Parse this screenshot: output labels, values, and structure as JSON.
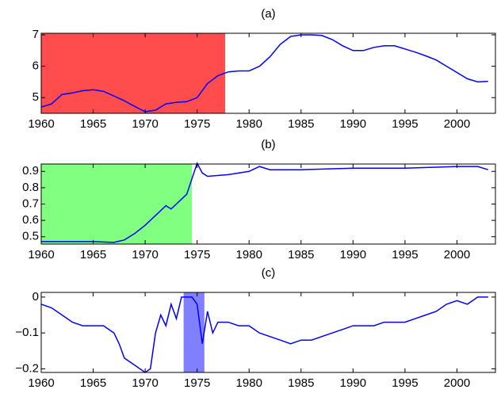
{
  "chart_data": [
    {
      "type": "line",
      "title": "(a)",
      "x": [
        1960,
        1961,
        1962,
        1963,
        1964,
        1965,
        1966,
        1967,
        1968,
        1969,
        1970,
        1971,
        1972,
        1973,
        1974,
        1975,
        1976,
        1977,
        1978,
        1979,
        1980,
        1981,
        1982,
        1983,
        1984,
        1985,
        1986,
        1987,
        1988,
        1989,
        1990,
        1991,
        1992,
        1993,
        1994,
        1995,
        1996,
        1997,
        1998,
        1999,
        2000,
        2001,
        2002,
        2003
      ],
      "series": [
        {
          "color": "#0000ff",
          "values": [
            4.7,
            4.8,
            5.1,
            5.15,
            5.22,
            5.25,
            5.2,
            5.05,
            4.9,
            4.72,
            4.55,
            4.6,
            4.8,
            4.85,
            4.87,
            5.0,
            5.45,
            5.7,
            5.82,
            5.85,
            5.85,
            6.0,
            6.3,
            6.7,
            6.95,
            7.0,
            7.0,
            6.98,
            6.85,
            6.65,
            6.5,
            6.5,
            6.6,
            6.65,
            6.65,
            6.55,
            6.45,
            6.33,
            6.2,
            6.0,
            5.8,
            5.6,
            5.5,
            5.52
          ]
        }
      ],
      "shade": {
        "x": [
          1960,
          1977.7
        ],
        "color": "#ff4c4c"
      },
      "xlim": [
        1960,
        2003.7
      ],
      "xticks": [
        1960,
        1965,
        1970,
        1975,
        1980,
        1985,
        1990,
        1995,
        2000
      ],
      "ylim": [
        4.5,
        7.05
      ],
      "yticks": [
        5,
        6,
        7
      ]
    },
    {
      "type": "line",
      "title": "(b)",
      "x": [
        1960,
        1962,
        1965,
        1967,
        1968,
        1969,
        1970,
        1971,
        1972,
        1972.5,
        1973,
        1974,
        1975,
        1975.5,
        1976,
        1978,
        1980,
        1981,
        1982,
        1985,
        1990,
        1995,
        2000,
        2002,
        2003
      ],
      "series": [
        {
          "color": "#0000ff",
          "values": [
            0.47,
            0.47,
            0.47,
            0.465,
            0.48,
            0.52,
            0.57,
            0.63,
            0.69,
            0.67,
            0.7,
            0.76,
            0.95,
            0.89,
            0.87,
            0.88,
            0.9,
            0.93,
            0.91,
            0.91,
            0.92,
            0.92,
            0.93,
            0.93,
            0.91
          ]
        }
      ],
      "shade": {
        "x": [
          1960,
          1974.5
        ],
        "color": "#80ff80"
      },
      "xlim": [
        1960,
        2003.7
      ],
      "xticks": [
        1960,
        1965,
        1970,
        1975,
        1980,
        1985,
        1990,
        1995,
        2000
      ],
      "ylim": [
        0.455,
        0.945
      ],
      "yticks": [
        0.5,
        0.6,
        0.7,
        0.8,
        0.9
      ]
    },
    {
      "type": "line",
      "title": "(c)",
      "x": [
        1960,
        1961,
        1962,
        1963,
        1964,
        1965,
        1966,
        1967,
        1967.5,
        1968,
        1969,
        1970,
        1970.5,
        1971,
        1971.5,
        1972,
        1972.5,
        1973,
        1973.5,
        1974,
        1974.5,
        1975,
        1975.5,
        1976,
        1976.5,
        1977,
        1978,
        1979,
        1980,
        1981,
        1982,
        1983,
        1984,
        1985,
        1986,
        1987,
        1988,
        1989,
        1990,
        1991,
        1992,
        1993,
        1994,
        1995,
        1996,
        1997,
        1998,
        1999,
        2000,
        2001,
        2002,
        2003
      ],
      "series": [
        {
          "color": "#0000ff",
          "values": [
            -0.02,
            -0.03,
            -0.05,
            -0.07,
            -0.08,
            -0.08,
            -0.08,
            -0.1,
            -0.13,
            -0.17,
            -0.19,
            -0.21,
            -0.2,
            -0.1,
            -0.05,
            -0.08,
            -0.02,
            -0.06,
            0,
            0,
            0,
            -0.02,
            -0.13,
            -0.04,
            -0.1,
            -0.07,
            -0.07,
            -0.08,
            -0.08,
            -0.1,
            -0.11,
            -0.12,
            -0.13,
            -0.12,
            -0.12,
            -0.11,
            -0.1,
            -0.09,
            -0.08,
            -0.08,
            -0.08,
            -0.07,
            -0.07,
            -0.07,
            -0.06,
            -0.05,
            -0.04,
            -0.02,
            -0.01,
            -0.02,
            0,
            0
          ]
        }
      ],
      "shade": {
        "x": [
          1973.7,
          1975.7
        ],
        "color": "#8080ff"
      },
      "xlim": [
        1960,
        2003.7
      ],
      "xticks": [
        1960,
        1965,
        1970,
        1975,
        1980,
        1985,
        1990,
        1995,
        2000
      ],
      "ylim": [
        -0.21,
        0.013
      ],
      "yticks": [
        {
          "value": -0.2,
          "label": "−0.2"
        },
        {
          "value": -0.1,
          "label": "−0.1"
        },
        0
      ]
    }
  ]
}
